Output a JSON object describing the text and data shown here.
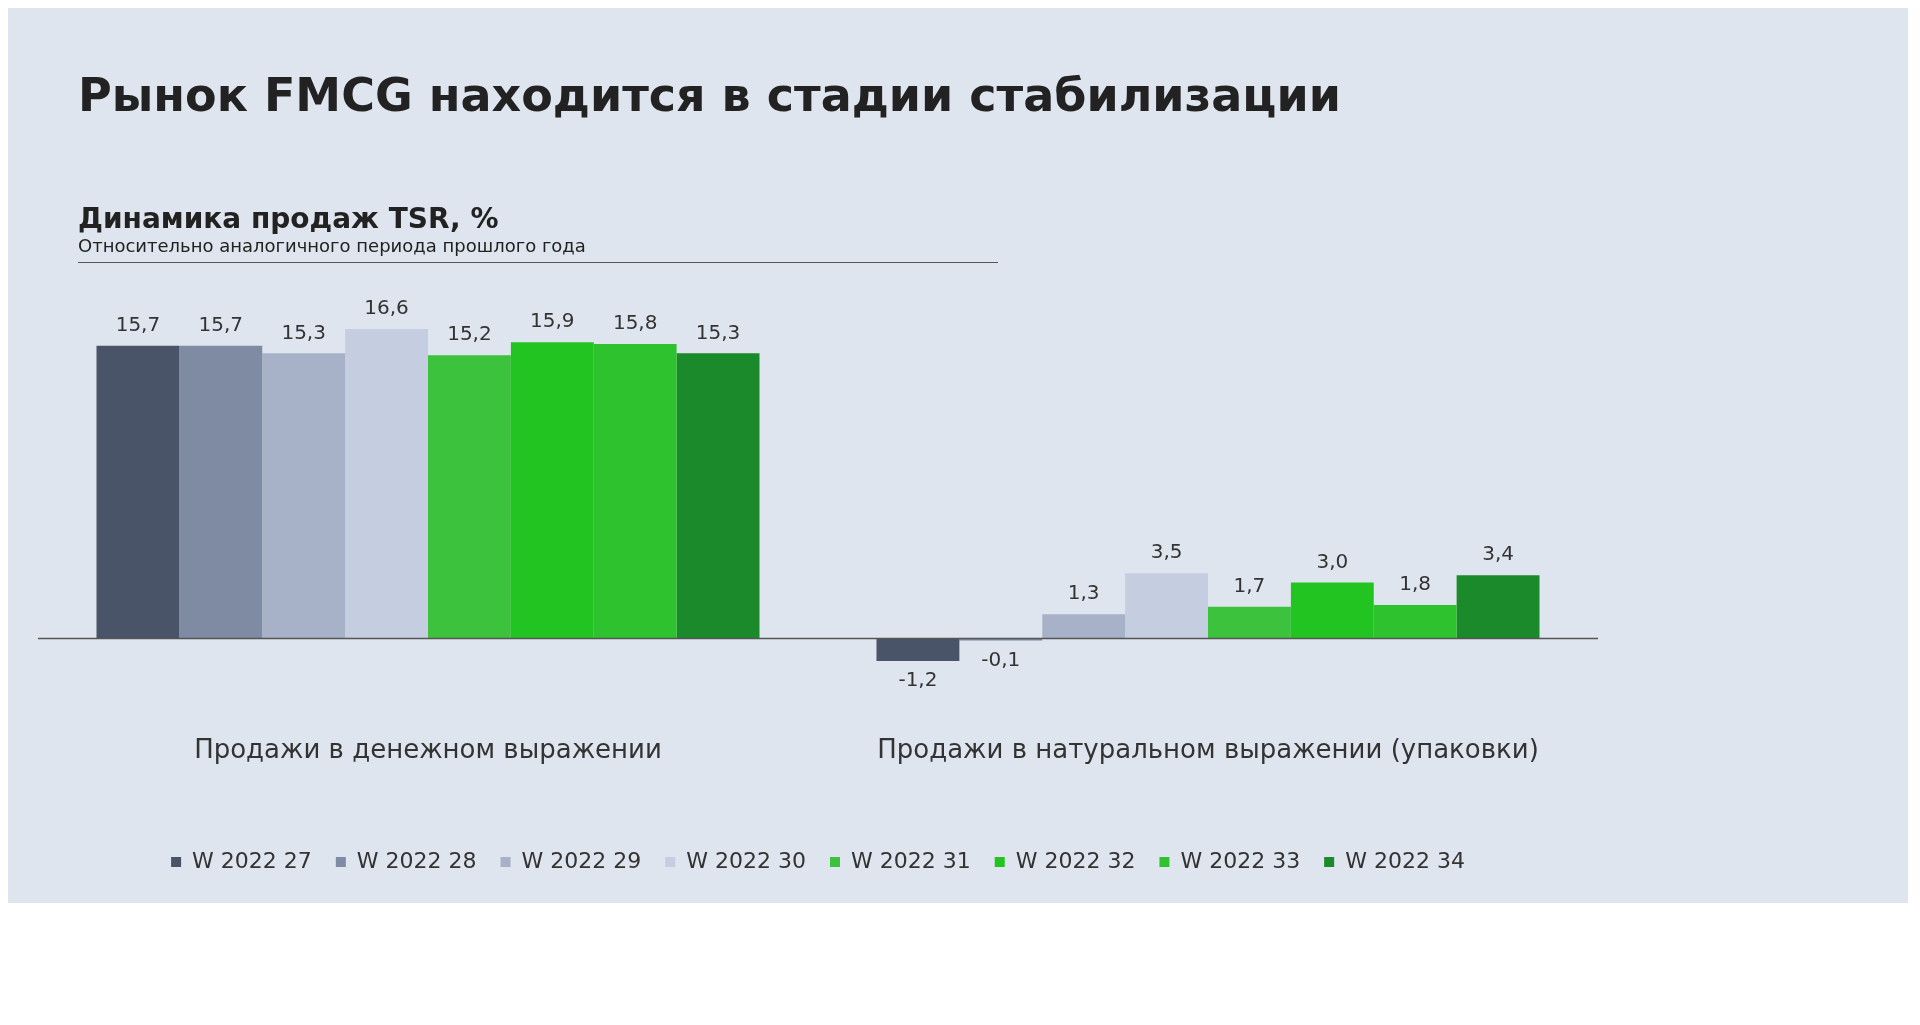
{
  "chart_data": {
    "type": "bar",
    "title": "Рынок FMCG находится в стадии стабилизации",
    "subtitle": "Динамика продаж TSR, %",
    "annotations": [
      "Относительно аналогичного периода прошлого года"
    ],
    "categories": [
      "Продажи в денежном выражении",
      "Продажи в натуральном выражении (упаковки)"
    ],
    "series": [
      {
        "name": "W 2022 27",
        "color": "#4a5468",
        "values": [
          15.7,
          -1.2
        ],
        "value_labels": [
          "15,7",
          "-1,2"
        ]
      },
      {
        "name": "W 2022 28",
        "color": "#7f8aa3",
        "values": [
          15.7,
          -0.1
        ],
        "value_labels": [
          "15,7",
          "-0,1"
        ]
      },
      {
        "name": "W 2022 29",
        "color": "#a7b2c9",
        "values": [
          15.3,
          1.3
        ],
        "value_labels": [
          "15,3",
          "1,3"
        ]
      },
      {
        "name": "W 2022 30",
        "color": "#c5cde0",
        "values": [
          16.6,
          3.5
        ],
        "value_labels": [
          "16,6",
          "3,5"
        ]
      },
      {
        "name": "W 2022 31",
        "color": "#3cc23c",
        "values": [
          15.2,
          1.7
        ],
        "value_labels": [
          "15,2",
          "1,7"
        ]
      },
      {
        "name": "W 2022 32",
        "color": "#22c422",
        "values": [
          15.9,
          3.0
        ],
        "value_labels": [
          "15,9",
          "3,0"
        ]
      },
      {
        "name": "W 2022 33",
        "color": "#2ec22e",
        "values": [
          15.8,
          1.8
        ],
        "value_labels": [
          "15,8",
          "1,8"
        ]
      },
      {
        "name": "W 2022 34",
        "color": "#1a8a2a",
        "values": [
          15.3,
          3.4
        ],
        "value_labels": [
          "15,3",
          "3,4"
        ]
      }
    ],
    "legend": "bottom",
    "grid": false
  }
}
